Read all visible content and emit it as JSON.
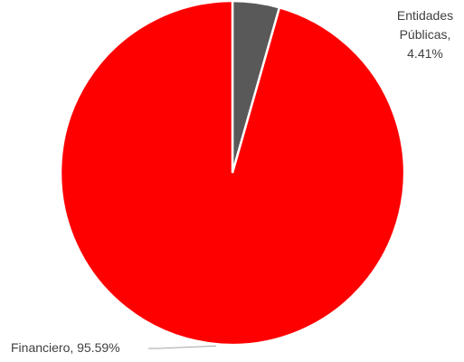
{
  "chart_data": {
    "type": "pie",
    "title": "",
    "legend": "none",
    "start_angle_deg": 0,
    "direction": "clockwise",
    "slices": [
      {
        "category": "Entidades Públicas",
        "value": 4.41,
        "label_lines": [
          "Entidades",
          "Públicas,",
          "4.41%"
        ],
        "color": "#595959"
      },
      {
        "category": "Financiero",
        "value": 95.59,
        "label_lines": [
          "Financiero, 95.59%"
        ],
        "color": "#ff0000"
      }
    ]
  }
}
